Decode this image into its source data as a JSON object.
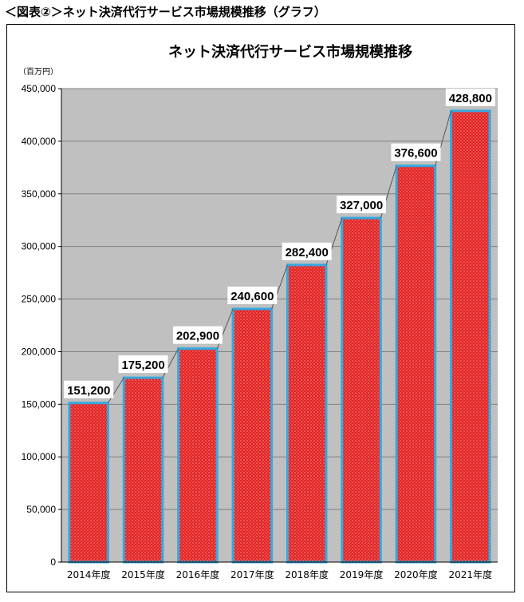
{
  "header": {
    "heading": "＜図表②＞ネット決済代行サービス市場規模推移（グラフ）"
  },
  "chart_data": {
    "type": "bar",
    "title": "ネット決済代行サービス市場規模推移",
    "unit_label": "（百万円）",
    "categories": [
      "2014年度",
      "2015年度",
      "2016年度",
      "2017年度",
      "2018年度",
      "2019年度",
      "2020年度",
      "2021年度"
    ],
    "values": [
      151200,
      175200,
      202900,
      240600,
      282400,
      327000,
      376600,
      428800
    ],
    "data_labels": [
      "151,200",
      "175,200",
      "202,900",
      "240,600",
      "282,400",
      "327,000",
      "376,600",
      "428,800"
    ],
    "ylim": [
      0,
      450000
    ],
    "yticks": [
      0,
      50000,
      100000,
      150000,
      200000,
      250000,
      300000,
      350000,
      400000,
      450000
    ],
    "ytick_labels": [
      "0",
      "50,000",
      "100,000",
      "150,000",
      "200,000",
      "250,000",
      "300,000",
      "350,000",
      "400,000",
      "450,000"
    ],
    "grid": true,
    "connector_lines": true,
    "colors": {
      "plot_bg": "#c0c0c0",
      "bar_fill": "#e32020",
      "bar_border": "#35a8e0",
      "grid": "#7f7f7f"
    }
  }
}
